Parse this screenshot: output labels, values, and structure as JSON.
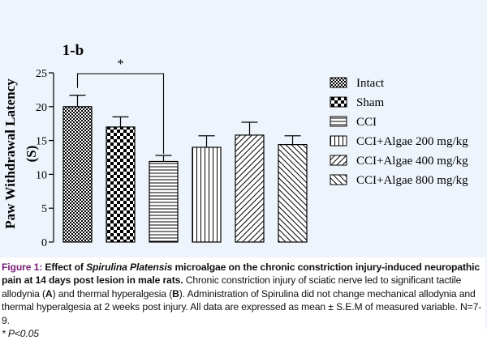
{
  "chart_data": {
    "type": "bar",
    "panel_label": "1-b",
    "ylabel": "Paw Withdrawal Latency",
    "ylabel_unit": "(S)",
    "ylim": [
      0,
      25
    ],
    "yticks": [
      0,
      5,
      10,
      15,
      20,
      25
    ],
    "categories": [
      "Intact",
      "Sham",
      "CCI",
      "CCI+Algae 200 mg/kg",
      "CCI+Algae 400 mg/kg",
      "CCI+Algae 800 mg/kg"
    ],
    "values": [
      20.0,
      17.0,
      11.9,
      14.0,
      15.8,
      14.4
    ],
    "errors": [
      1.7,
      1.5,
      0.9,
      1.7,
      1.9,
      1.3
    ],
    "patterns": [
      "dense-checker",
      "checker",
      "horizontal",
      "vertical",
      "diagonal-right",
      "diagonal-left"
    ],
    "legend_position": "right",
    "significance": {
      "from": 0,
      "to": 2,
      "label": "*"
    }
  },
  "caption": {
    "figure_label": "Figure 1:",
    "title_start": "Effect of ",
    "title_italic": "Spirulina Platensis",
    "title_end": " microalgae on the chronic constriction injury-induced neuropathic pain at 14 days post lesion in male rats.",
    "body_1": "Chronic constriction injury of sciatic nerve led to significant tactile allodynia (",
    "label_a": "A",
    "body_2": ") and thermal hyperalgesia (",
    "label_b": "B",
    "body_3": "). Administration of Spirulina did not change mechanical allodynia and thermal hyperalgesia at 2 weeks post injury. All data are expressed as mean ± S.E.M of measured variable. N=7-9.",
    "footnote": "* P<0.05"
  }
}
